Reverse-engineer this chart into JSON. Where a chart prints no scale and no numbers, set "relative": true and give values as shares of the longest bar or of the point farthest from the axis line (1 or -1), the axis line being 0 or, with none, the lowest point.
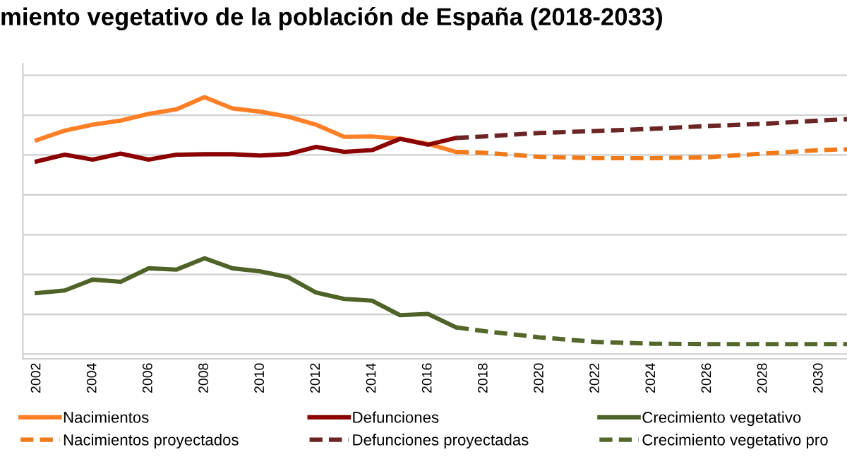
{
  "chart_data": {
    "type": "line",
    "title": "miento vegetativo de la población de España (2018-2033)",
    "relative": true,
    "xlim": [
      2001.5,
      2031
    ],
    "xticks": [
      2002,
      2004,
      2006,
      2008,
      2010,
      2012,
      2014,
      2016,
      2018,
      2020,
      2022,
      2024,
      2026,
      2028,
      2030
    ],
    "grid": "y",
    "legend": "bottom",
    "marker": "none",
    "series": [
      {
        "name": "Nacimientos",
        "color": "#ff7f27",
        "line_style": "solid",
        "x": [
          2002,
          2003,
          2004,
          2005,
          2006,
          2007,
          2008,
          2009,
          2010,
          2011,
          2012,
          2013,
          2014,
          2015,
          2016,
          2017
        ],
        "values": [
          0.802,
          0.846,
          0.873,
          0.892,
          0.923,
          0.944,
          1,
          0.948,
          0.933,
          0.91,
          0.873,
          0.817,
          0.819,
          0.808,
          0.785,
          0.748
        ]
      },
      {
        "name": "Defunciones",
        "color": "#8b0000",
        "line_style": "solid",
        "x": [
          2002,
          2003,
          2004,
          2005,
          2006,
          2007,
          2008,
          2009,
          2010,
          2011,
          2012,
          2013,
          2014,
          2015,
          2016,
          2017
        ],
        "values": [
          0.704,
          0.735,
          0.712,
          0.74,
          0.712,
          0.735,
          0.737,
          0.737,
          0.731,
          0.738,
          0.771,
          0.748,
          0.756,
          0.808,
          0.781,
          0.812
        ]
      },
      {
        "name": "Crecimiento vegetativo",
        "color": "#4f6228",
        "line_style": "solid",
        "x": [
          2002,
          2003,
          2004,
          2005,
          2006,
          2007,
          2008,
          2009,
          2010,
          2011,
          2012,
          2013,
          2014,
          2015,
          2016,
          2017
        ],
        "values": [
          0.098,
          0.11,
          0.16,
          0.15,
          0.212,
          0.206,
          0.258,
          0.212,
          0.198,
          0.171,
          0.1,
          0.071,
          0.063,
          -0.004,
          0.002,
          -0.06
        ]
      },
      {
        "name": "Nacimientos proyectados",
        "color": "#f07a1a",
        "line_style": "dashed",
        "x": [
          2017,
          2018,
          2020,
          2022,
          2024,
          2026,
          2028,
          2030,
          2031
        ],
        "values": [
          0.748,
          0.744,
          0.725,
          0.719,
          0.719,
          0.723,
          0.74,
          0.756,
          0.76
        ]
      },
      {
        "name": "Defunciones proyectadas",
        "color": "#6b2525",
        "line_style": "dashed",
        "x": [
          2017,
          2018,
          2020,
          2022,
          2024,
          2026,
          2028,
          2030,
          2031
        ],
        "values": [
          0.812,
          0.819,
          0.835,
          0.844,
          0.854,
          0.867,
          0.877,
          0.892,
          0.898
        ]
      },
      {
        "name": "Crecimiento vegetativo pro",
        "color": "#56672b",
        "line_style": "dashed",
        "x": [
          2017,
          2018,
          2020,
          2022,
          2024,
          2026,
          2028,
          2030,
          2031
        ],
        "values": [
          -0.06,
          -0.077,
          -0.106,
          -0.127,
          -0.135,
          -0.137,
          -0.137,
          -0.137,
          -0.137
        ]
      }
    ]
  }
}
